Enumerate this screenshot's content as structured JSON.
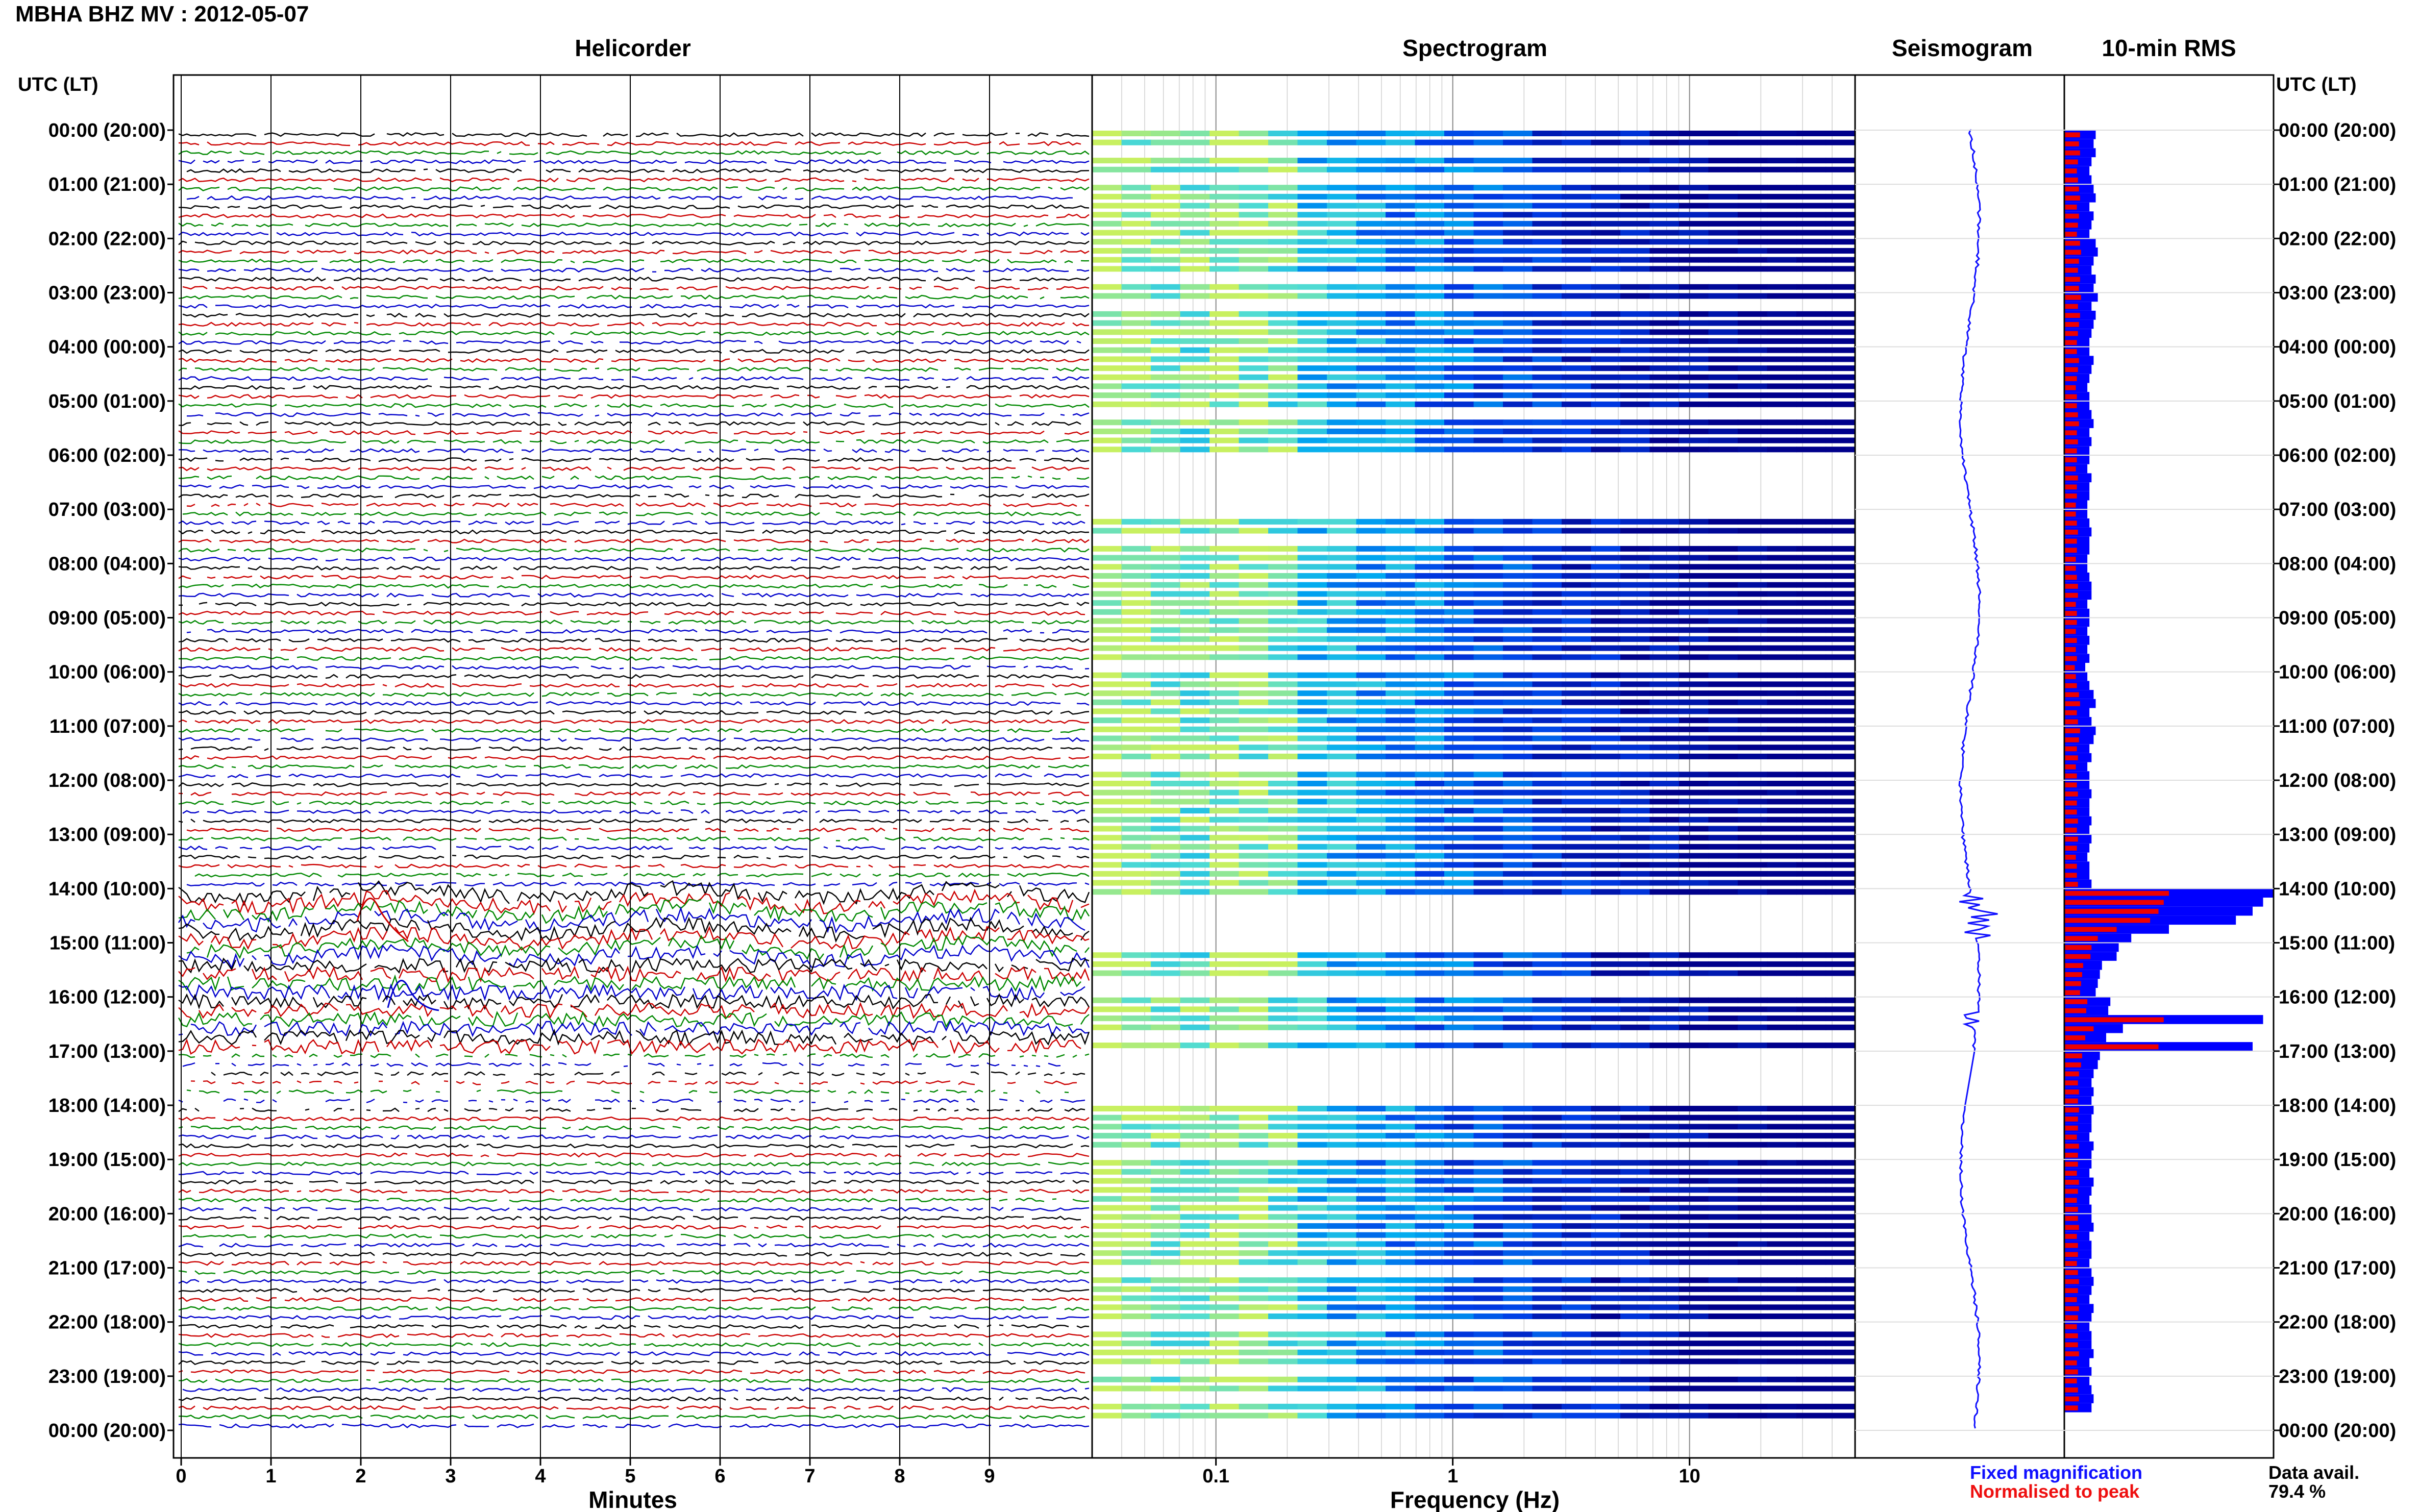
{
  "title": "MBHA BHZ MV : 2012-05-07",
  "panels": {
    "helicorder": "Helicorder",
    "spectrogram": "Spectrogram",
    "seismogram": "Seismogram",
    "rms": "10-min RMS"
  },
  "time_axis_label": "UTC (LT)",
  "time_labels": [
    "00:00 (20:00)",
    "01:00 (21:00)",
    "02:00 (22:00)",
    "03:00 (23:00)",
    "04:00 (00:00)",
    "05:00 (01:00)",
    "06:00 (02:00)",
    "07:00 (03:00)",
    "08:00 (04:00)",
    "09:00 (05:00)",
    "10:00 (06:00)",
    "11:00 (07:00)",
    "12:00 (08:00)",
    "13:00 (09:00)",
    "14:00 (10:00)",
    "15:00 (11:00)",
    "16:00 (12:00)",
    "17:00 (13:00)",
    "18:00 (14:00)",
    "19:00 (15:00)",
    "20:00 (16:00)",
    "21:00 (17:00)",
    "22:00 (18:00)",
    "23:00 (19:00)",
    "00:00 (20:00)"
  ],
  "helicorder_axis": {
    "label": "Minutes",
    "ticks": [
      "0",
      "1",
      "2",
      "3",
      "4",
      "5",
      "6",
      "7",
      "8",
      "9"
    ]
  },
  "spectrogram_axis": {
    "label": "Frequency (Hz)",
    "ticks": [
      "0.1",
      "1",
      "10"
    ],
    "scale": "log"
  },
  "legend": {
    "fixed": "Fixed magnification",
    "normalised": "Normalised to peak"
  },
  "data_avail": {
    "label": "Data avail.",
    "value": "79.4 %"
  },
  "colors": {
    "trace_cycle": [
      "#000000",
      "#cc0000",
      "#008800",
      "#0000cc"
    ],
    "rms_fixed": "#0000ff",
    "rms_norm": "#ee0000",
    "spec_low": "#00008b",
    "spec_high": "#c8f060"
  },
  "chart_data": {
    "type": "bar",
    "title": "10-min RMS",
    "hours": 24,
    "rms_fixed": [
      0.15,
      0.14,
      0.15,
      0.13,
      0.12,
      0.13,
      0.14,
      0.15,
      0.12,
      0.14,
      0.13,
      0.12,
      0.15,
      0.16,
      0.14,
      0.13,
      0.15,
      0.14,
      0.16,
      0.13,
      0.15,
      0.14,
      0.13,
      0.12,
      0.12,
      0.14,
      0.13,
      0.12,
      0.11,
      0.12,
      0.12,
      0.13,
      0.14,
      0.12,
      0.13,
      0.12,
      0.12,
      0.11,
      0.13,
      0.12,
      0.12,
      0.11,
      0.11,
      0.12,
      0.13,
      0.12,
      0.12,
      0.11,
      0.11,
      0.12,
      0.13,
      0.13,
      0.11,
      0.12,
      0.12,
      0.11,
      0.12,
      0.11,
      0.12,
      0.1,
      0.11,
      0.12,
      0.14,
      0.15,
      0.12,
      0.13,
      0.15,
      0.14,
      0.12,
      0.13,
      0.11,
      0.12,
      0.12,
      0.13,
      0.12,
      0.12,
      0.13,
      0.12,
      0.13,
      0.12,
      0.11,
      0.12,
      0.12,
      0.13,
      1.0,
      0.95,
      0.9,
      0.82,
      0.5,
      0.32,
      0.26,
      0.25,
      0.18,
      0.17,
      0.16,
      0.15,
      0.22,
      0.21,
      0.95,
      0.28,
      0.2,
      0.9,
      0.17,
      0.16,
      0.14,
      0.13,
      0.14,
      0.13,
      0.14,
      0.13,
      0.13,
      0.12,
      0.14,
      0.13,
      0.13,
      0.12,
      0.14,
      0.13,
      0.12,
      0.13,
      0.13,
      0.14,
      0.12,
      0.13,
      0.13,
      0.12,
      0.13,
      0.14,
      0.13,
      0.12,
      0.14,
      0.13,
      0.12,
      0.13,
      0.13,
      0.14,
      0.12,
      0.13,
      0.12,
      0.13,
      0.14,
      0.13
    ],
    "x_ticks_minutes": [
      0,
      1,
      2,
      3,
      4,
      5,
      6,
      7,
      8,
      9
    ],
    "freq_ticks_hz": [
      0.1,
      1,
      10
    ]
  }
}
